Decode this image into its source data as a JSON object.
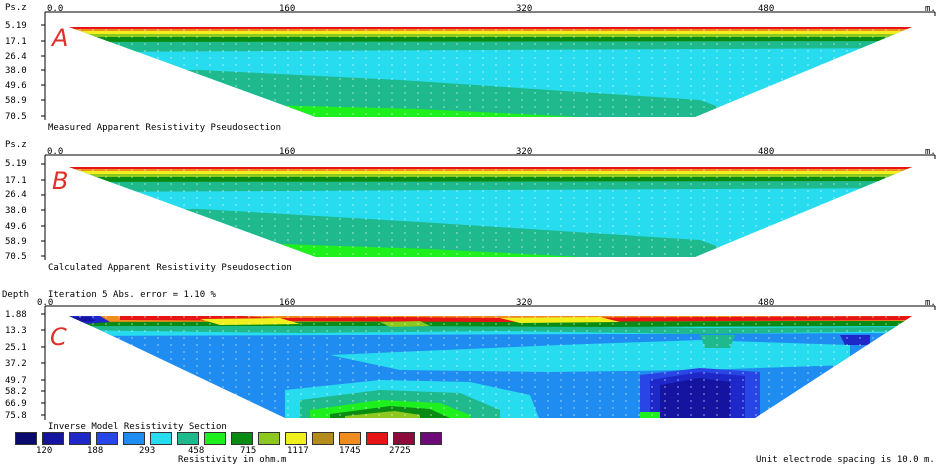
{
  "panels": [
    {
      "letter": "A",
      "ylabel": "Ps.z",
      "xticks": [
        "0.0",
        "160",
        "320",
        "480"
      ],
      "x_unit": "m.",
      "depths": [
        "5.19",
        "17.1",
        "26.4",
        "38.0",
        "49.6",
        "58.9",
        "70.5"
      ],
      "caption": "Measured Apparent Resistivity Pseudosection"
    },
    {
      "letter": "B",
      "ylabel": "Ps.z",
      "xticks": [
        "0.0",
        "160",
        "320",
        "480"
      ],
      "x_unit": "m.",
      "depths": [
        "5.19",
        "17.1",
        "26.4",
        "38.0",
        "49.6",
        "58.9",
        "70.5"
      ],
      "caption": "Calculated Apparent Resistivity Pseudosection"
    },
    {
      "letter": "C",
      "ylabel": "Depth",
      "iteration": "Iteration 5 Abs. error = 1.10 %",
      "xticks": [
        "0.0",
        "160",
        "320",
        "480"
      ],
      "x_unit": "m.",
      "depths": [
        "1.88",
        "13.3",
        "25.1",
        "37.2",
        "49.7",
        "58.2",
        "66.9",
        "75.8"
      ],
      "caption": "Inverse Model Resistivity Section"
    }
  ],
  "legend": {
    "colors": [
      "#0a0a6e",
      "#1414a0",
      "#1e28c8",
      "#2846e6",
      "#1e8cf0",
      "#28dcf0",
      "#1eb98c",
      "#1ef01e",
      "#0a8c14",
      "#8cc81e",
      "#f0f01e",
      "#b48c1e",
      "#f08c1e",
      "#e61414",
      "#8c0a3c",
      "#6e0a78"
    ],
    "values": [
      "120",
      "188",
      "293",
      "458",
      "715",
      "1117",
      "1745",
      "2725"
    ],
    "title": "Resistivity in ohm.m"
  },
  "footer": "Unit electrode spacing is 10.0 m."
}
